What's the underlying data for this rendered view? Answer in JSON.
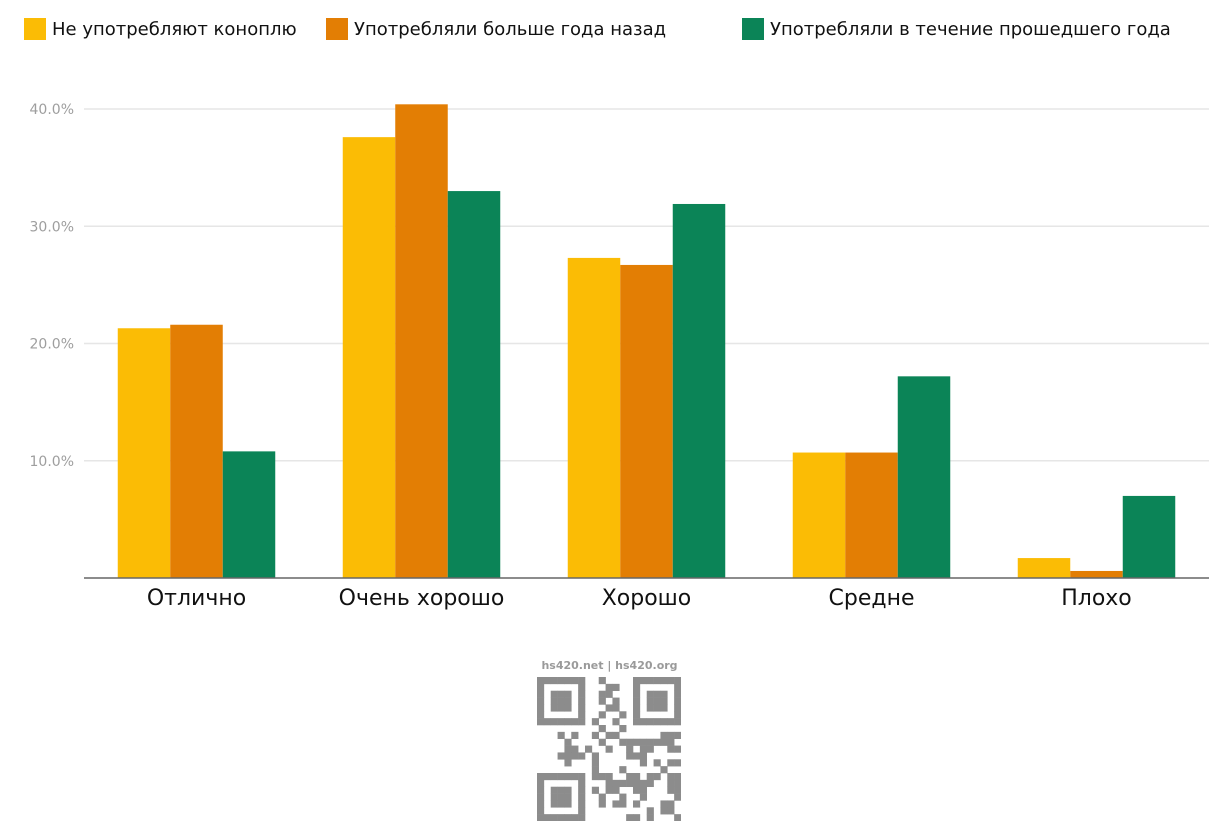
{
  "chart_data": {
    "type": "bar",
    "categories": [
      "Отлично",
      "Очень хорошо",
      "Хорошо",
      "Средне",
      "Плохо"
    ],
    "series": [
      {
        "name": "Не употребляют коноплю",
        "color": "#FBBC05",
        "values": [
          21.3,
          37.6,
          27.3,
          10.7,
          1.7
        ]
      },
      {
        "name": "Употребляли больше года назад",
        "color": "#E37E04",
        "values": [
          21.6,
          40.4,
          26.7,
          10.7,
          0.6
        ]
      },
      {
        "name": "Употребляли в течение прошедшего года",
        "color": "#0B8457",
        "values": [
          10.8,
          33.0,
          31.9,
          17.2,
          7.0
        ]
      }
    ],
    "ylim": [
      0,
      40
    ],
    "yticks": [
      "10.0%",
      "20.0%",
      "30.0%",
      "40.0%"
    ],
    "ytick_values": [
      10,
      20,
      30,
      40
    ],
    "grid": true,
    "legend_position": "top"
  },
  "watermark": {
    "text": "hs420.net | hs420.org"
  }
}
